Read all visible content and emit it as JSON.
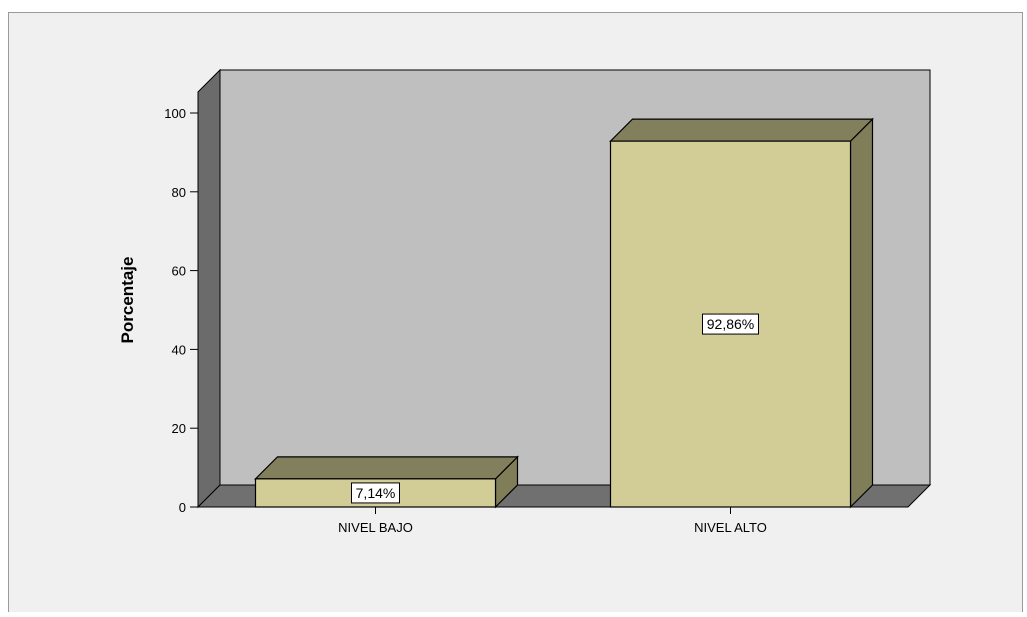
{
  "chart_data": {
    "type": "bar",
    "categories": [
      "NIVEL BAJO",
      "NIVEL ALTO"
    ],
    "values": [
      7.14,
      92.86
    ],
    "data_labels": [
      "7,14%",
      "92,86%"
    ],
    "title": "",
    "xlabel": "",
    "ylabel": "Porcentaje",
    "ylim": [
      0,
      100
    ],
    "yticks": [
      0,
      20,
      40,
      60,
      80,
      100
    ],
    "grid": false,
    "style": "3d",
    "colors": {
      "back_wall": "#bfbfbf",
      "side_wall": "#6b6b6b",
      "floor": "#707070",
      "bar_front": "#d2cd96",
      "bar_top": "#817f5c",
      "bar_side": "#807d59",
      "outline": "#000000"
    }
  }
}
